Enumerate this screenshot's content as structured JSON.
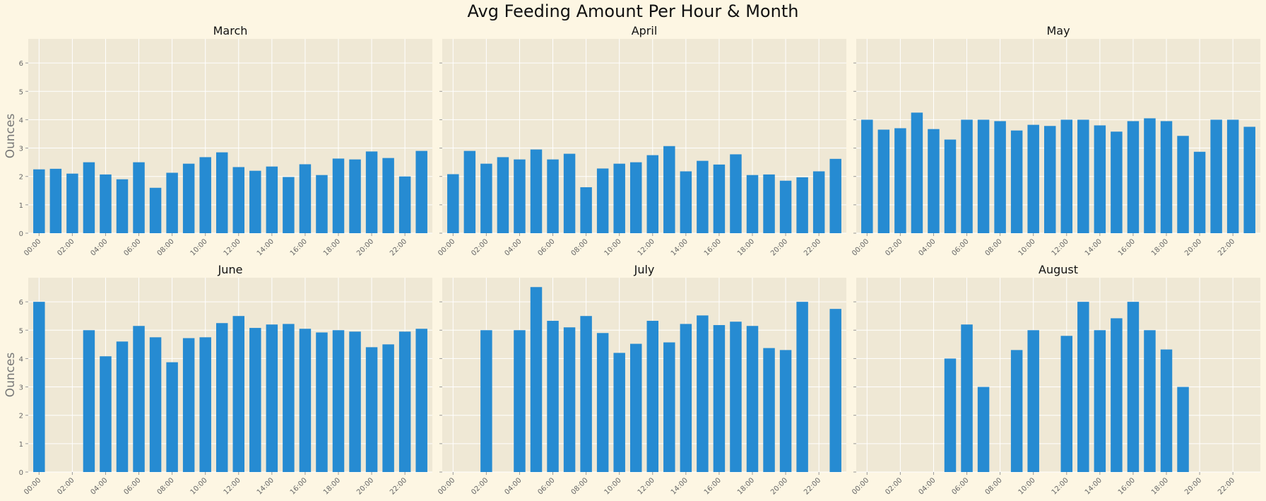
{
  "figure": {
    "title": "Avg Feeding Amount Per Hour & Month",
    "colors": {
      "background": "#fdf6e3",
      "axes_background": "#efe8d5",
      "grid": "#ffffff",
      "bar": "#268bd2",
      "tick_label": "#666666",
      "ylabel": "#777777"
    }
  },
  "chart_data": [
    {
      "type": "bar",
      "title": "March",
      "xlabel": "",
      "ylabel": "Ounces",
      "ylim": [
        0,
        6.85
      ],
      "yticks": [
        0,
        1,
        2,
        3,
        4,
        5,
        6
      ],
      "categories": [
        "00:00",
        "01:00",
        "02:00",
        "03:00",
        "04:00",
        "05:00",
        "06:00",
        "07:00",
        "08:00",
        "09:00",
        "10:00",
        "11:00",
        "12:00",
        "13:00",
        "14:00",
        "15:00",
        "16:00",
        "17:00",
        "18:00",
        "19:00",
        "20:00",
        "21:00",
        "22:00",
        "23:00"
      ],
      "xtick_labels": [
        "00:00",
        "02:00",
        "04:00",
        "06:00",
        "08:00",
        "10:00",
        "12:00",
        "14:00",
        "16:00",
        "18:00",
        "20:00",
        "22:00"
      ],
      "values": [
        2.25,
        2.27,
        2.1,
        2.5,
        2.07,
        1.9,
        2.5,
        1.6,
        2.13,
        2.45,
        2.68,
        2.85,
        2.33,
        2.2,
        2.35,
        1.98,
        2.43,
        2.05,
        2.63,
        2.6,
        2.88,
        2.65,
        2.0,
        2.9
      ],
      "grid": true
    },
    {
      "type": "bar",
      "title": "April",
      "xlabel": "",
      "ylabel": "",
      "ylim": [
        0,
        6.85
      ],
      "yticks": [
        0,
        1,
        2,
        3,
        4,
        5,
        6
      ],
      "categories": [
        "00:00",
        "01:00",
        "02:00",
        "03:00",
        "04:00",
        "05:00",
        "06:00",
        "07:00",
        "08:00",
        "09:00",
        "10:00",
        "11:00",
        "12:00",
        "13:00",
        "14:00",
        "15:00",
        "16:00",
        "17:00",
        "18:00",
        "19:00",
        "20:00",
        "21:00",
        "22:00",
        "23:00"
      ],
      "xtick_labels": [
        "00:00",
        "02:00",
        "04:00",
        "06:00",
        "08:00",
        "10:00",
        "12:00",
        "14:00",
        "16:00",
        "18:00",
        "20:00",
        "22:00"
      ],
      "values": [
        2.08,
        2.9,
        2.45,
        2.68,
        2.6,
        2.95,
        2.6,
        2.8,
        1.62,
        2.28,
        2.45,
        2.5,
        2.75,
        3.07,
        2.18,
        2.55,
        2.42,
        2.78,
        2.05,
        2.07,
        1.85,
        1.97,
        2.18,
        2.62
      ],
      "grid": true
    },
    {
      "type": "bar",
      "title": "May",
      "xlabel": "",
      "ylabel": "",
      "ylim": [
        0,
        6.85
      ],
      "yticks": [
        0,
        1,
        2,
        3,
        4,
        5,
        6
      ],
      "categories": [
        "00:00",
        "01:00",
        "02:00",
        "03:00",
        "04:00",
        "05:00",
        "06:00",
        "07:00",
        "08:00",
        "09:00",
        "10:00",
        "11:00",
        "12:00",
        "13:00",
        "14:00",
        "15:00",
        "16:00",
        "17:00",
        "18:00",
        "19:00",
        "20:00",
        "21:00",
        "22:00",
        "23:00"
      ],
      "xtick_labels": [
        "00:00",
        "02:00",
        "04:00",
        "06:00",
        "08:00",
        "10:00",
        "12:00",
        "14:00",
        "16:00",
        "18:00",
        "20:00",
        "22:00"
      ],
      "values": [
        4.0,
        3.65,
        3.7,
        4.25,
        3.67,
        3.3,
        4.0,
        4.0,
        3.95,
        3.62,
        3.82,
        3.78,
        4.0,
        4.0,
        3.8,
        3.58,
        3.95,
        4.05,
        3.95,
        3.43,
        2.87,
        4.0,
        4.0,
        3.75
      ],
      "grid": true
    },
    {
      "type": "bar",
      "title": "June",
      "xlabel": "",
      "ylabel": "Ounces",
      "ylim": [
        0,
        6.85
      ],
      "yticks": [
        0,
        1,
        2,
        3,
        4,
        5,
        6
      ],
      "categories": [
        "00:00",
        "01:00",
        "02:00",
        "03:00",
        "04:00",
        "05:00",
        "06:00",
        "07:00",
        "08:00",
        "09:00",
        "10:00",
        "11:00",
        "12:00",
        "13:00",
        "14:00",
        "15:00",
        "16:00",
        "17:00",
        "18:00",
        "19:00",
        "20:00",
        "21:00",
        "22:00",
        "23:00"
      ],
      "xtick_labels": [
        "00:00",
        "02:00",
        "04:00",
        "06:00",
        "08:00",
        "10:00",
        "12:00",
        "14:00",
        "16:00",
        "18:00",
        "20:00",
        "22:00"
      ],
      "values": [
        6.0,
        null,
        null,
        5.0,
        4.08,
        4.6,
        5.15,
        4.75,
        3.87,
        4.72,
        4.75,
        5.25,
        5.5,
        5.08,
        5.2,
        5.22,
        5.05,
        4.92,
        5.0,
        4.95,
        4.4,
        4.5,
        4.95,
        5.05
      ],
      "grid": true
    },
    {
      "type": "bar",
      "title": "July",
      "xlabel": "",
      "ylabel": "",
      "ylim": [
        0,
        6.85
      ],
      "yticks": [
        0,
        1,
        2,
        3,
        4,
        5,
        6
      ],
      "categories": [
        "00:00",
        "01:00",
        "02:00",
        "03:00",
        "04:00",
        "05:00",
        "06:00",
        "07:00",
        "08:00",
        "09:00",
        "10:00",
        "11:00",
        "12:00",
        "13:00",
        "14:00",
        "15:00",
        "16:00",
        "17:00",
        "18:00",
        "19:00",
        "20:00",
        "21:00",
        "22:00",
        "23:00"
      ],
      "xtick_labels": [
        "00:00",
        "02:00",
        "04:00",
        "06:00",
        "08:00",
        "10:00",
        "12:00",
        "14:00",
        "16:00",
        "18:00",
        "20:00",
        "22:00"
      ],
      "values": [
        null,
        null,
        5.0,
        null,
        5.0,
        6.52,
        5.33,
        5.1,
        5.5,
        4.9,
        4.2,
        4.52,
        5.33,
        4.57,
        5.22,
        5.52,
        5.18,
        5.3,
        5.15,
        4.37,
        4.3,
        6.0,
        null,
        5.75
      ],
      "grid": true
    },
    {
      "type": "bar",
      "title": "August",
      "xlabel": "",
      "ylabel": "",
      "ylim": [
        0,
        6.85
      ],
      "yticks": [
        0,
        1,
        2,
        3,
        4,
        5,
        6
      ],
      "categories": [
        "00:00",
        "01:00",
        "02:00",
        "03:00",
        "04:00",
        "05:00",
        "06:00",
        "07:00",
        "08:00",
        "09:00",
        "10:00",
        "11:00",
        "12:00",
        "13:00",
        "14:00",
        "15:00",
        "16:00",
        "17:00",
        "18:00",
        "19:00",
        "20:00",
        "21:00",
        "22:00",
        "23:00"
      ],
      "xtick_labels": [
        "00:00",
        "02:00",
        "04:00",
        "06:00",
        "08:00",
        "10:00",
        "12:00",
        "14:00",
        "16:00",
        "18:00",
        "20:00",
        "22:00"
      ],
      "values": [
        null,
        null,
        null,
        null,
        null,
        4.0,
        5.2,
        3.0,
        null,
        4.3,
        5.0,
        null,
        4.8,
        6.0,
        5.0,
        5.42,
        6.0,
        5.0,
        4.32,
        3.0,
        null,
        null,
        null,
        null
      ],
      "grid": true
    }
  ]
}
